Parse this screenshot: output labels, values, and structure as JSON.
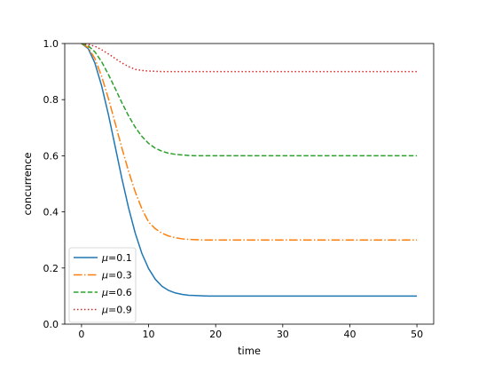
{
  "chart_data": {
    "type": "line",
    "title": "",
    "xlabel": "time",
    "ylabel": "concurrence",
    "xlim": [
      -2.5,
      52.5
    ],
    "ylim": [
      0.0,
      1.0
    ],
    "xticks": [
      0,
      10,
      20,
      30,
      40,
      50
    ],
    "xtick_labels": [
      "0",
      "10",
      "20",
      "30",
      "40",
      "50"
    ],
    "yticks": [
      0.0,
      0.2,
      0.4,
      0.6,
      0.8,
      1.0
    ],
    "ytick_labels": [
      "0.0",
      "0.2",
      "0.4",
      "0.6",
      "0.8",
      "1.0"
    ],
    "grid": false,
    "legend_position": "lower-left",
    "series": [
      {
        "name_prefix": "μ",
        "name_value": "=0.1",
        "color": "#1f77b4",
        "linestyle": "solid",
        "x": [
          0,
          1,
          2,
          3,
          4,
          5,
          6,
          7,
          8,
          9,
          10,
          11,
          12,
          13,
          14,
          15,
          16,
          17,
          18,
          19,
          20,
          22,
          25,
          30,
          35,
          40,
          45,
          50
        ],
        "y": [
          1.0,
          0.982,
          0.93,
          0.849,
          0.748,
          0.635,
          0.521,
          0.416,
          0.325,
          0.252,
          0.198,
          0.16,
          0.135,
          0.12,
          0.111,
          0.106,
          0.103,
          0.102,
          0.101,
          0.1,
          0.1,
          0.1,
          0.1,
          0.1,
          0.1,
          0.1,
          0.1,
          0.1
        ]
      },
      {
        "name_prefix": "μ",
        "name_value": "=0.3",
        "color": "#ff7f0e",
        "linestyle": "dashdot",
        "x": [
          0,
          1,
          2,
          3,
          4,
          5,
          6,
          7,
          8,
          9,
          10,
          11,
          12,
          13,
          14,
          15,
          16,
          17,
          18,
          19,
          20,
          22,
          25,
          30,
          35,
          40,
          45,
          50
        ],
        "y": [
          1.0,
          0.986,
          0.946,
          0.883,
          0.805,
          0.718,
          0.629,
          0.546,
          0.472,
          0.411,
          0.364,
          0.34,
          0.324,
          0.314,
          0.308,
          0.304,
          0.302,
          0.301,
          0.3,
          0.3,
          0.3,
          0.3,
          0.3,
          0.3,
          0.3,
          0.3,
          0.3,
          0.3
        ]
      },
      {
        "name_prefix": "μ",
        "name_value": "=0.6",
        "color": "#2ca02c",
        "linestyle": "dashed",
        "x": [
          0,
          1,
          2,
          3,
          4,
          5,
          6,
          7,
          8,
          9,
          10,
          11,
          12,
          13,
          14,
          15,
          16,
          17,
          18,
          19,
          20,
          22,
          25,
          30,
          35,
          40,
          45,
          50
        ],
        "y": [
          1.0,
          0.992,
          0.97,
          0.935,
          0.89,
          0.841,
          0.79,
          0.743,
          0.702,
          0.669,
          0.644,
          0.627,
          0.616,
          0.609,
          0.605,
          0.603,
          0.601,
          0.6,
          0.6,
          0.6,
          0.6,
          0.6,
          0.6,
          0.6,
          0.6,
          0.6,
          0.6,
          0.6
        ]
      },
      {
        "name_prefix": "μ",
        "name_value": "=0.9",
        "color": "#d62728",
        "linestyle": "dotted",
        "x": [
          0,
          1,
          2,
          3,
          4,
          5,
          6,
          7,
          8,
          9,
          10,
          11,
          12,
          13,
          14,
          15,
          16,
          17,
          18,
          19,
          20,
          22,
          25,
          30,
          35,
          40,
          45,
          50
        ],
        "y": [
          1.0,
          0.997,
          0.99,
          0.978,
          0.963,
          0.947,
          0.931,
          0.918,
          0.908,
          0.904,
          0.902,
          0.901,
          0.9,
          0.9,
          0.9,
          0.9,
          0.9,
          0.9,
          0.9,
          0.9,
          0.9,
          0.9,
          0.9,
          0.9,
          0.9,
          0.9,
          0.9,
          0.9
        ]
      }
    ]
  }
}
